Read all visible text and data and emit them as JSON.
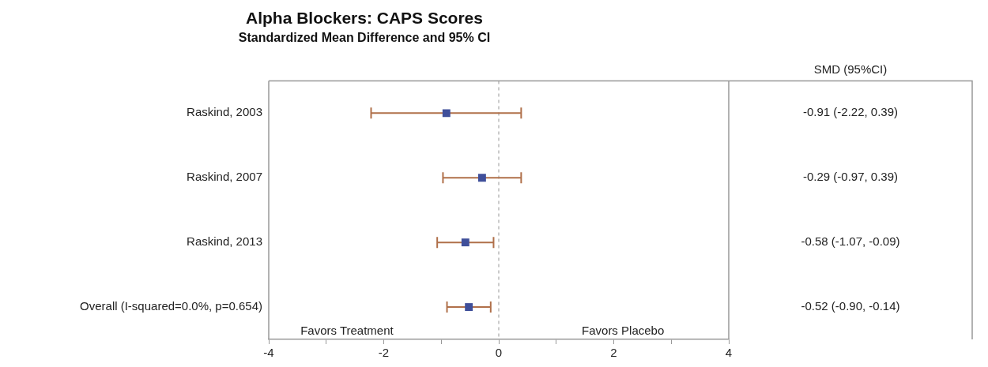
{
  "chart_data": {
    "type": "scatter",
    "orientation": "horizontal",
    "title": "Alpha Blockers: CAPS Scores",
    "subtitle": "Standardized Mean Difference and 95% CI",
    "categories": [
      "Raskind, 2003",
      "Raskind, 2007",
      "Raskind, 2013",
      "Overall (I-squared=0.0%, p=0.654)"
    ],
    "series": [
      {
        "color": "#3f4f9a",
        "values": [
          -0.91,
          -0.29,
          -0.58,
          -0.52
        ],
        "errors": [
          [
            -2.22,
            0.39
          ],
          [
            -0.97,
            0.39
          ],
          [
            -1.07,
            -0.09
          ],
          [
            -0.9,
            -0.14
          ]
        ],
        "value_labels": [
          "-0.91 (-2.22, 0.39)",
          "-0.29 (-0.97, 0.39)",
          "-0.58 (-1.07, -0.09)",
          "-0.52 (-0.90, -0.14)"
        ]
      }
    ],
    "marker": "square",
    "xlim": [
      -4,
      4
    ],
    "xticks": [
      -4,
      {
        "value": -3,
        "label": null
      },
      -2,
      {
        "value": -1,
        "label": null
      },
      0,
      {
        "value": 1,
        "label": null
      },
      2,
      {
        "value": 3,
        "label": null
      },
      4
    ],
    "ref_lines": [
      {
        "axis": "x",
        "value": 0,
        "color": "#bbbbbb",
        "line_style": "dashed"
      }
    ],
    "annotations": [
      "SMD (95%CI)",
      "Favors Treatment",
      "Favors Placebo"
    ],
    "grid": false,
    "legend": false
  }
}
